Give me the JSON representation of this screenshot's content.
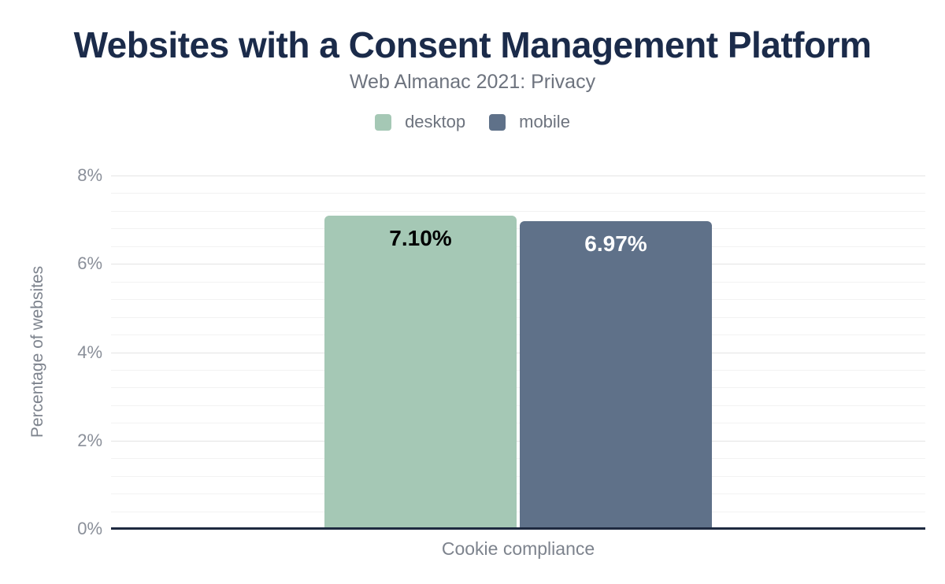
{
  "header": {
    "title": "Websites with a Consent Management Platform",
    "subtitle": "Web Almanac 2021: Privacy"
  },
  "chart_data": {
    "type": "bar",
    "title": "Websites with a Consent Management Platform",
    "subtitle": "Web Almanac 2021: Privacy",
    "categories": [
      "Cookie compliance"
    ],
    "series": [
      {
        "name": "desktop",
        "values": [
          7.1
        ],
        "data_labels": [
          "7.10%"
        ],
        "color": "#a5c8b5",
        "label_color": "#000000"
      },
      {
        "name": "mobile",
        "values": [
          6.97
        ],
        "data_labels": [
          "6.97%"
        ],
        "color": "#5f7189",
        "label_color": "#ffffff"
      }
    ],
    "xlabel": "Cookie compliance",
    "ylabel": "Percentage of websites",
    "ylim": [
      0,
      8
    ],
    "yticks": [
      0,
      2,
      4,
      6,
      8
    ],
    "ytick_labels": [
      "0%",
      "2%",
      "4%",
      "6%",
      "8%"
    ],
    "minor_grid_step": 0.4,
    "grid": true,
    "legend_position": "top"
  },
  "colors": {
    "background": "#ffffff",
    "title": "#1b2b4a",
    "subtitle": "#6d737e",
    "axis_title": "#7d838d",
    "tick_label": "#8a8f99",
    "baseline": "#1e2a40",
    "grid_major": "#e4e4e4",
    "grid_minor": "#f2f2f2",
    "desktop": "#a5c8b5",
    "mobile": "#5f7189"
  }
}
